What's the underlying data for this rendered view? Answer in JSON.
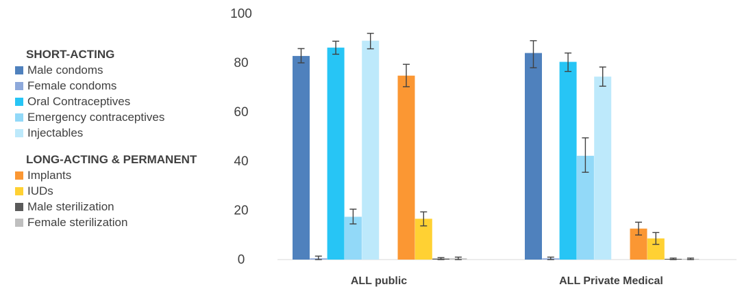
{
  "chart_data": {
    "type": "bar",
    "title": "",
    "xlabel": "",
    "ylabel": "",
    "ylim": [
      0,
      100
    ],
    "yticks": [
      0,
      20,
      40,
      60,
      80,
      100
    ],
    "grid": false,
    "legend_placement": "left",
    "categories": [
      "ALL public",
      "ALL Private Medical"
    ],
    "legend_groups": [
      {
        "title": "SHORT-ACTING",
        "series": [
          {
            "name": "Male condoms",
            "color": "#4F81BD",
            "values": [
              82.8,
              84.0
            ],
            "error_low": [
              80.0,
              78.0
            ],
            "error_high": [
              85.8,
              89.0
            ]
          },
          {
            "name": "Female condoms",
            "color": "#8EA9DB",
            "values": [
              0.5,
              0.5
            ],
            "error_low": [
              0.0,
              0.0
            ],
            "error_high": [
              1.4,
              1.0
            ]
          },
          {
            "name": "Oral Contraceptives",
            "color": "#27C5F5",
            "values": [
              86.2,
              80.4
            ],
            "error_low": [
              83.5,
              76.5
            ],
            "error_high": [
              88.8,
              84.0
            ]
          },
          {
            "name": "Emergency contraceptives",
            "color": "#92D9F8",
            "values": [
              17.4,
              42.2
            ],
            "error_low": [
              14.5,
              35.5
            ],
            "error_high": [
              20.5,
              49.5
            ]
          },
          {
            "name": "Injectables",
            "color": "#BDE9FB",
            "values": [
              89.0,
              74.4
            ],
            "error_low": [
              85.7,
              70.5
            ],
            "error_high": [
              92.0,
              78.3
            ]
          }
        ]
      },
      {
        "title": "LONG-ACTING & PERMANENT",
        "series": [
          {
            "name": "Implants",
            "color": "#FB9733",
            "values": [
              74.8,
              12.6
            ],
            "error_low": [
              70.3,
              10.0
            ],
            "error_high": [
              79.4,
              15.2
            ]
          },
          {
            "name": "IUDs",
            "color": "#FFD133",
            "values": [
              16.6,
              8.6
            ],
            "error_low": [
              13.7,
              6.2
            ],
            "error_high": [
              19.4,
              11.0
            ]
          },
          {
            "name": "Male sterilization",
            "color": "#5A5A5A",
            "values": [
              0.4,
              0.3
            ],
            "error_low": [
              0.0,
              0.0
            ],
            "error_high": [
              0.8,
              0.6
            ]
          },
          {
            "name": "Female sterilization",
            "color": "#BFBFBF",
            "values": [
              0.5,
              0.3
            ],
            "error_low": [
              0.0,
              0.0
            ],
            "error_high": [
              1.0,
              0.6
            ]
          }
        ]
      }
    ]
  }
}
